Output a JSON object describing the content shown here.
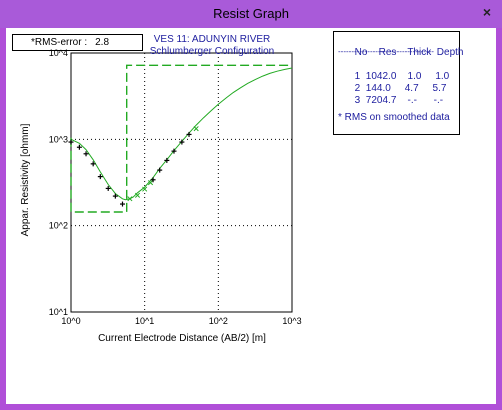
{
  "window": {
    "title": "Resist Graph",
    "close_glyph": "×"
  },
  "rms_box": {
    "label": "*RMS-error :",
    "value": "2.8"
  },
  "layer_table": {
    "headers": [
      "No",
      "Res",
      "Thick",
      "Depth"
    ],
    "separator": "------------------------------------",
    "rows": [
      {
        "no": "1",
        "res": "1042.0",
        "thick": "1.0",
        "depth": "1.0"
      },
      {
        "no": "2",
        "res": "144.0",
        "thick": "4.7",
        "depth": "5.7"
      },
      {
        "no": "3",
        "res": "7204.7",
        "thick": "-.-",
        "depth": "-.-"
      }
    ],
    "note": "* RMS on smoothed data"
  },
  "chart_data": {
    "type": "line",
    "title": "VES 11: ADUNYIN RIVER",
    "subtitle": "Schlumberger Configuration",
    "xlabel": "Current Electrode Distance (AB/2) [m]",
    "ylabel": "Appar. Resistivity [ohmm]",
    "xscale": "log",
    "yscale": "log",
    "xlim": [
      1,
      1000
    ],
    "ylim": [
      10,
      10000
    ],
    "xtick_labels": [
      "10^0",
      "10^1",
      "10^2",
      "10^3"
    ],
    "ytick_labels": [
      "10^1",
      "10^2",
      "10^3",
      "10^4"
    ],
    "grid": "dotted at decades",
    "colors": {
      "model": "#22aa22",
      "observed": "#000000",
      "smoothed": "#22aa22"
    },
    "observed": {
      "x": [
        1.0,
        1.3,
        1.6,
        2.0,
        2.5,
        3.2,
        4.0,
        5.0
      ],
      "y": [
        930,
        810,
        680,
        520,
        370,
        270,
        220,
        178
      ]
    },
    "smoothed_points": {
      "x": [
        6.3,
        8.0,
        10.0,
        12.0
      ],
      "y": [
        205,
        225,
        265,
        315
      ]
    },
    "observed_upper": {
      "x": [
        13.0,
        16.0,
        20.0,
        25.0,
        32.0,
        40.0
      ],
      "y": [
        340,
        440,
        570,
        730,
        930,
        1140
      ]
    },
    "smoothed_upper": {
      "x": [
        50.0
      ],
      "y": [
        1330
      ]
    },
    "model_curve": {
      "x": [
        1.0,
        1.3,
        1.6,
        2.0,
        2.5,
        3.2,
        4.0,
        5.0,
        5.5,
        6.3,
        7.0,
        8.0,
        10.0,
        13.0,
        16.0,
        20.0,
        25.0,
        32.0,
        40.0,
        50.0,
        63.0,
        80.0,
        100.0,
        130.0,
        160.0,
        200.0,
        250.0,
        320.0,
        400.0,
        500.0,
        630.0,
        800.0,
        1000.0
      ],
      "y": [
        1000,
        900,
        760,
        580,
        420,
        300,
        235,
        205,
        200,
        205,
        215,
        240,
        280,
        360,
        460,
        580,
        740,
        950,
        1180,
        1460,
        1780,
        2150,
        2550,
        3050,
        3500,
        3950,
        4450,
        4950,
        5400,
        5800,
        6150,
        6450,
        6700
      ]
    },
    "layer_model": {
      "x": [
        1.0,
        1.0,
        5.7,
        5.7,
        1000.0
      ],
      "y": [
        1042.0,
        144.0,
        144.0,
        7204.7,
        7204.7
      ]
    }
  }
}
